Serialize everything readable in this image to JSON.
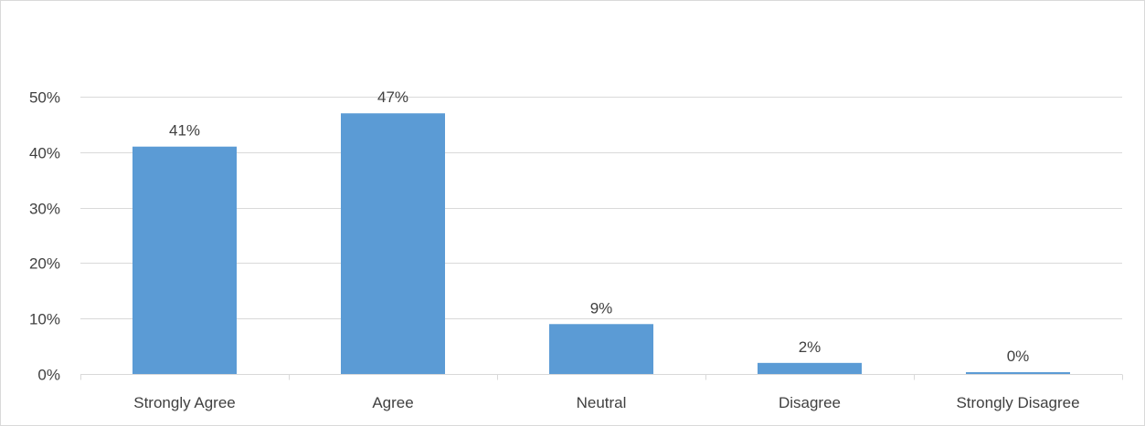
{
  "chart_data": {
    "type": "bar",
    "title": "",
    "xlabel": "",
    "ylabel": "",
    "categories": [
      "Strongly Agree",
      "Agree",
      "Neutral",
      "Disagree",
      "Strongly Disagree"
    ],
    "values": [
      41,
      47,
      9,
      2,
      0
    ],
    "data_labels": [
      "41%",
      "47%",
      "9%",
      "2%",
      "0%"
    ],
    "ylim": [
      0,
      50
    ],
    "y_ticks": [
      0,
      10,
      20,
      30,
      40,
      50
    ],
    "y_tick_labels": [
      "0%",
      "10%",
      "20%",
      "30%",
      "40%",
      "50%"
    ],
    "grid": true,
    "legend": "none",
    "bar_color": "#5b9bd5"
  }
}
